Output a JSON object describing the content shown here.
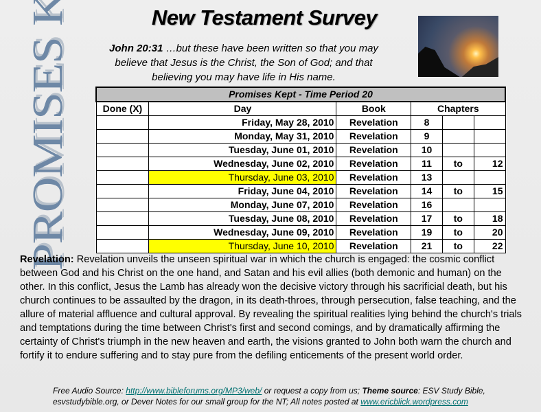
{
  "header": {
    "title": "New Testament Survey",
    "side_logo": "PROMISES KEPT",
    "verse_ref": "John 20:31",
    "verse_text": " …but these have been written so that you may believe that Jesus is the Christ, the Son of God; and that believing you may have life in His name."
  },
  "table": {
    "title": "Promises Kept - Time Period 20",
    "headers": [
      "Done (X)",
      "Day",
      "Book",
      "Chapters"
    ],
    "highlight_color": "#ffff00",
    "rows": [
      {
        "day": "Friday, May 28, 2010",
        "book": "Revelation",
        "c1": "8",
        "to": "",
        "c2": "",
        "hl": false
      },
      {
        "day": "Monday, May 31, 2010",
        "book": "Revelation",
        "c1": "9",
        "to": "",
        "c2": "",
        "hl": false
      },
      {
        "day": "Tuesday, June 01, 2010",
        "book": "Revelation",
        "c1": "10",
        "to": "",
        "c2": "",
        "hl": false
      },
      {
        "day": "Wednesday, June 02, 2010",
        "book": "Revelation",
        "c1": "11",
        "to": "to",
        "c2": "12",
        "hl": false
      },
      {
        "day": "Thursday, June 03, 2010",
        "book": "Revelation",
        "c1": "13",
        "to": "",
        "c2": "",
        "hl": true
      },
      {
        "day": "Friday, June 04, 2010",
        "book": "Revelation",
        "c1": "14",
        "to": "to",
        "c2": "15",
        "hl": false
      },
      {
        "day": "Monday, June 07, 2010",
        "book": "Revelation",
        "c1": "16",
        "to": "",
        "c2": "",
        "hl": false
      },
      {
        "day": "Tuesday, June 08, 2010",
        "book": "Revelation",
        "c1": "17",
        "to": "to",
        "c2": "18",
        "hl": false
      },
      {
        "day": "Wednesday, June 09, 2010",
        "book": "Revelation",
        "c1": "19",
        "to": "to",
        "c2": "20",
        "hl": false
      },
      {
        "day": "Thursday, June 10, 2010",
        "book": "Revelation",
        "c1": "21",
        "to": "to",
        "c2": "22",
        "hl": true
      }
    ]
  },
  "description": {
    "label": "Revelation:",
    "text": " Revelation unveils the unseen spiritual war in which the church is engaged: the cosmic conflict between God and his Christ on the one hand, and Satan and his evil allies (both demonic and human) on the other. In this conflict, Jesus the Lamb has already won the decisive victory through his sacrificial death, but his church continues to be assaulted by the dragon, in its death-throes, through persecution, false teaching, and the allure of material affluence and cultural approval. By revealing the spiritual realities lying behind the church's trials and temptations during the time between Christ's first and second comings, and by dramatically affirming the certainty of Christ's triumph in the new heaven and earth, the visions granted to John both warn the church and fortify it to endure suffering and to stay pure from the defiling enticements of the present world order."
  },
  "footer": {
    "p1": "Free Audio Source: ",
    "link1": "http://www.bibleforums.org/MP3/web/",
    "p2": " or request a copy from us; ",
    "theme_label": "Theme source",
    "p3": ": ESV Study Bible, esvstudybible.org, or Dever Notes for our small group for the NT;   All notes posted at  ",
    "link2": "www.ericblick.wordpress.com"
  }
}
